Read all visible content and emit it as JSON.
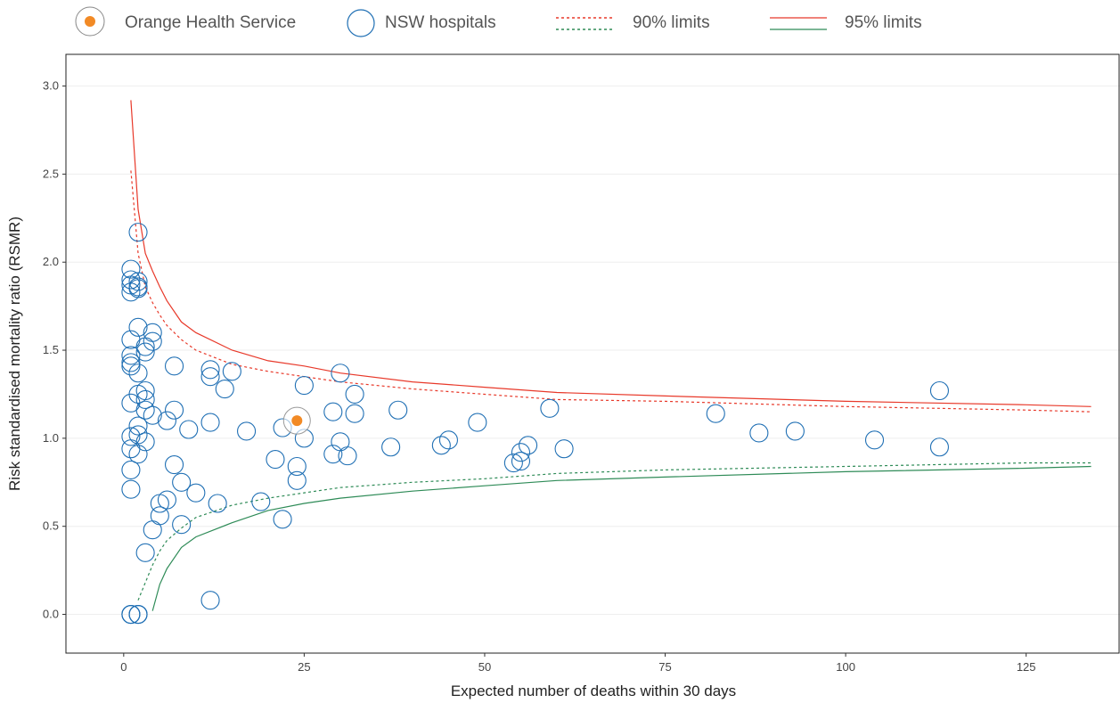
{
  "colors": {
    "hospital": "#1f6fb4",
    "highlight": "#f28a25",
    "upper_limit": "#e8392a",
    "lower_limit": "#2e8b57",
    "grid": "#eeeeee",
    "frame": "#222222"
  },
  "legend": {
    "items": [
      {
        "label": "Orange Health Service",
        "icon": "highlight-hospital-icon"
      },
      {
        "label": "NSW hospitals",
        "icon": "hospital-circle-icon"
      },
      {
        "label": "90% limits",
        "icon": "dashed-limits-icon"
      },
      {
        "label": "95% limits",
        "icon": "solid-limits-icon"
      }
    ]
  },
  "chart_data": {
    "type": "scatter",
    "title": "",
    "xlabel": "Expected number of deaths within 30 days",
    "ylabel": "Risk standardised mortality ratio (RSMR)",
    "xlim": [
      -8,
      138
    ],
    "ylim": [
      -0.22,
      3.18
    ],
    "x_ticks": [
      0,
      25,
      50,
      75,
      100,
      125
    ],
    "y_ticks": [
      0.0,
      0.5,
      1.0,
      1.5,
      2.0,
      2.5,
      3.0
    ],
    "x_tick_labels": [
      "0",
      "25",
      "50",
      "75",
      "100",
      "125"
    ],
    "y_tick_labels": [
      "0.0",
      "0.5",
      "1.0",
      "1.5",
      "2.0",
      "2.5",
      "3.0"
    ],
    "grid": "horizontal",
    "legend_position": "top",
    "series": [
      {
        "name": "NSW hospitals",
        "points": [
          [
            1,
            1.96
          ],
          [
            1,
            1.9
          ],
          [
            1,
            1.87
          ],
          [
            1,
            1.83
          ],
          [
            2,
            2.17
          ],
          [
            2,
            1.89
          ],
          [
            2,
            1.86
          ],
          [
            2,
            1.85
          ],
          [
            2,
            1.63
          ],
          [
            1,
            1.56
          ],
          [
            1,
            1.47
          ],
          [
            1,
            1.43
          ],
          [
            1,
            1.41
          ],
          [
            2,
            1.37
          ],
          [
            3,
            1.52
          ],
          [
            3,
            1.49
          ],
          [
            4,
            1.6
          ],
          [
            4,
            1.55
          ],
          [
            3,
            1.27
          ],
          [
            2,
            1.25
          ],
          [
            3,
            1.22
          ],
          [
            1,
            1.2
          ],
          [
            3,
            1.16
          ],
          [
            4,
            1.13
          ],
          [
            2,
            1.07
          ],
          [
            1,
            1.01
          ],
          [
            2,
            1.02
          ],
          [
            3,
            0.98
          ],
          [
            1,
            0.94
          ],
          [
            2,
            0.91
          ],
          [
            1,
            0.82
          ],
          [
            1,
            0.71
          ],
          [
            7,
            1.41
          ],
          [
            7,
            1.16
          ],
          [
            6,
            1.1
          ],
          [
            9,
            1.05
          ],
          [
            7,
            0.85
          ],
          [
            8,
            0.75
          ],
          [
            10,
            0.69
          ],
          [
            6,
            0.65
          ],
          [
            5,
            0.63
          ],
          [
            5,
            0.56
          ],
          [
            8,
            0.51
          ],
          [
            4,
            0.48
          ],
          [
            3,
            0.35
          ],
          [
            12,
            1.39
          ],
          [
            12,
            1.35
          ],
          [
            14,
            1.28
          ],
          [
            15,
            1.38
          ],
          [
            12,
            1.09
          ],
          [
            17,
            1.04
          ],
          [
            13,
            0.63
          ],
          [
            12,
            0.08
          ],
          [
            19,
            0.64
          ],
          [
            21,
            0.88
          ],
          [
            22,
            1.06
          ],
          [
            22,
            0.54
          ],
          [
            24,
            0.84
          ],
          [
            24,
            0.76
          ],
          [
            25,
            1.3
          ],
          [
            25,
            1.0
          ],
          [
            30,
            1.37
          ],
          [
            29,
            1.15
          ],
          [
            32,
            1.25
          ],
          [
            32,
            1.14
          ],
          [
            30,
            0.98
          ],
          [
            29,
            0.91
          ],
          [
            31,
            0.9
          ],
          [
            37,
            0.95
          ],
          [
            38,
            1.16
          ],
          [
            44,
            0.96
          ],
          [
            45,
            0.99
          ],
          [
            49,
            1.09
          ],
          [
            54,
            0.86
          ],
          [
            55,
            0.92
          ],
          [
            55,
            0.87
          ],
          [
            56,
            0.96
          ],
          [
            59,
            1.17
          ],
          [
            61,
            0.94
          ],
          [
            82,
            1.14
          ],
          [
            88,
            1.03
          ],
          [
            93,
            1.04
          ],
          [
            104,
            0.99
          ],
          [
            113,
            1.27
          ],
          [
            113,
            0.95
          ],
          [
            1,
            0.0
          ],
          [
            1,
            0.0
          ],
          [
            1,
            0.0
          ],
          [
            2,
            0.0
          ],
          [
            2,
            0.0
          ],
          [
            2,
            0.0
          ]
        ]
      },
      {
        "name": "Orange Health Service",
        "points": [
          [
            24,
            1.1
          ]
        ]
      }
    ],
    "limits": {
      "upper_95": [
        [
          1,
          2.92
        ],
        [
          2,
          2.3
        ],
        [
          3,
          2.05
        ],
        [
          4,
          1.95
        ],
        [
          5,
          1.86
        ],
        [
          6,
          1.78
        ],
        [
          8,
          1.66
        ],
        [
          10,
          1.6
        ],
        [
          15,
          1.5
        ],
        [
          20,
          1.44
        ],
        [
          25,
          1.41
        ],
        [
          30,
          1.37
        ],
        [
          40,
          1.32
        ],
        [
          50,
          1.29
        ],
        [
          60,
          1.26
        ],
        [
          75,
          1.24
        ],
        [
          100,
          1.21
        ],
        [
          125,
          1.19
        ],
        [
          134,
          1.18
        ]
      ],
      "upper_90": [
        [
          1,
          2.52
        ],
        [
          2,
          2.05
        ],
        [
          3,
          1.86
        ],
        [
          4,
          1.77
        ],
        [
          5,
          1.7
        ],
        [
          6,
          1.64
        ],
        [
          8,
          1.56
        ],
        [
          10,
          1.5
        ],
        [
          15,
          1.42
        ],
        [
          20,
          1.38
        ],
        [
          25,
          1.35
        ],
        [
          30,
          1.32
        ],
        [
          40,
          1.28
        ],
        [
          50,
          1.25
        ],
        [
          60,
          1.22
        ],
        [
          75,
          1.21
        ],
        [
          100,
          1.18
        ],
        [
          125,
          1.16
        ],
        [
          134,
          1.15
        ]
      ],
      "lower_90": [
        [
          2,
          0.08
        ],
        [
          3,
          0.18
        ],
        [
          4,
          0.28
        ],
        [
          5,
          0.36
        ],
        [
          6,
          0.42
        ],
        [
          8,
          0.49
        ],
        [
          10,
          0.55
        ],
        [
          15,
          0.62
        ],
        [
          20,
          0.66
        ],
        [
          25,
          0.69
        ],
        [
          30,
          0.72
        ],
        [
          40,
          0.75
        ],
        [
          50,
          0.77
        ],
        [
          60,
          0.8
        ],
        [
          75,
          0.82
        ],
        [
          100,
          0.84
        ],
        [
          125,
          0.86
        ],
        [
          134,
          0.86
        ]
      ],
      "lower_95": [
        [
          4,
          0.02
        ],
        [
          5,
          0.17
        ],
        [
          6,
          0.26
        ],
        [
          8,
          0.38
        ],
        [
          10,
          0.44
        ],
        [
          15,
          0.52
        ],
        [
          20,
          0.59
        ],
        [
          25,
          0.63
        ],
        [
          30,
          0.66
        ],
        [
          40,
          0.7
        ],
        [
          50,
          0.73
        ],
        [
          60,
          0.76
        ],
        [
          75,
          0.78
        ],
        [
          100,
          0.81
        ],
        [
          125,
          0.83
        ],
        [
          134,
          0.84
        ]
      ]
    }
  }
}
